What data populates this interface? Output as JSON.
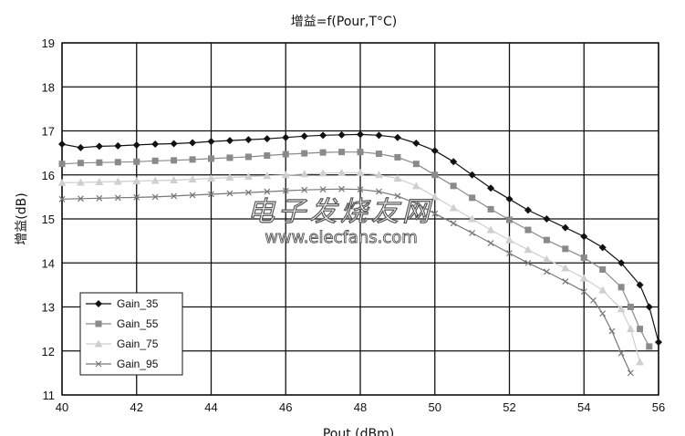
{
  "chart_data": {
    "type": "line",
    "title": "增益=f(Pour,T°C)",
    "xlabel": "Pout (dBm)",
    "ylabel": "增益(dB)",
    "xlim": [
      40,
      56
    ],
    "ylim": [
      11,
      19
    ],
    "x_ticks": [
      "40",
      "42",
      "44",
      "46",
      "48",
      "50",
      "52",
      "54",
      "56"
    ],
    "y_ticks": [
      "11",
      "12",
      "13",
      "14",
      "15",
      "16",
      "17",
      "18",
      "19"
    ],
    "grid": true,
    "legend_position": "bottom-left",
    "series": [
      {
        "name": "Gain_35",
        "marker": "diamond",
        "color": "#111111",
        "points": [
          [
            40.0,
            16.7
          ],
          [
            40.5,
            16.62
          ],
          [
            41.0,
            16.65
          ],
          [
            41.5,
            16.66
          ],
          [
            42.0,
            16.68
          ],
          [
            42.5,
            16.7
          ],
          [
            43.0,
            16.71
          ],
          [
            43.5,
            16.73
          ],
          [
            44.0,
            16.76
          ],
          [
            44.5,
            16.78
          ],
          [
            45.0,
            16.8
          ],
          [
            45.5,
            16.82
          ],
          [
            46.0,
            16.85
          ],
          [
            46.5,
            16.88
          ],
          [
            47.0,
            16.9
          ],
          [
            47.5,
            16.91
          ],
          [
            48.0,
            16.92
          ],
          [
            48.5,
            16.9
          ],
          [
            49.0,
            16.85
          ],
          [
            49.5,
            16.72
          ],
          [
            50.0,
            16.55
          ],
          [
            50.5,
            16.3
          ],
          [
            51.0,
            16.0
          ],
          [
            51.5,
            15.7
          ],
          [
            52.0,
            15.45
          ],
          [
            52.5,
            15.2
          ],
          [
            53.0,
            15.0
          ],
          [
            53.5,
            14.8
          ],
          [
            54.0,
            14.6
          ],
          [
            54.5,
            14.35
          ],
          [
            55.0,
            14.0
          ],
          [
            55.5,
            13.5
          ],
          [
            55.75,
            13.0
          ],
          [
            56.0,
            12.2
          ]
        ]
      },
      {
        "name": "Gain_55",
        "marker": "square",
        "color": "#8a8a8a",
        "points": [
          [
            40.0,
            16.25
          ],
          [
            40.5,
            16.27
          ],
          [
            41.0,
            16.28
          ],
          [
            41.5,
            16.29
          ],
          [
            42.0,
            16.3
          ],
          [
            42.5,
            16.32
          ],
          [
            43.0,
            16.33
          ],
          [
            43.5,
            16.35
          ],
          [
            44.0,
            16.37
          ],
          [
            44.5,
            16.39
          ],
          [
            45.0,
            16.41
          ],
          [
            45.5,
            16.44
          ],
          [
            46.0,
            16.47
          ],
          [
            46.5,
            16.49
          ],
          [
            47.0,
            16.51
          ],
          [
            47.5,
            16.52
          ],
          [
            48.0,
            16.52
          ],
          [
            48.5,
            16.48
          ],
          [
            49.0,
            16.4
          ],
          [
            49.5,
            16.25
          ],
          [
            50.0,
            16.0
          ],
          [
            50.5,
            15.75
          ],
          [
            51.0,
            15.48
          ],
          [
            51.5,
            15.22
          ],
          [
            52.0,
            14.98
          ],
          [
            52.5,
            14.75
          ],
          [
            53.0,
            14.52
          ],
          [
            53.5,
            14.32
          ],
          [
            54.0,
            14.12
          ],
          [
            54.5,
            13.85
          ],
          [
            55.0,
            13.45
          ],
          [
            55.25,
            13.0
          ],
          [
            55.5,
            12.5
          ],
          [
            55.75,
            12.1
          ]
        ]
      },
      {
        "name": "Gain_75",
        "marker": "triangle",
        "color": "#cfcfcf",
        "points": [
          [
            40.0,
            15.82
          ],
          [
            40.5,
            15.83
          ],
          [
            41.0,
            15.84
          ],
          [
            41.5,
            15.85
          ],
          [
            42.0,
            15.86
          ],
          [
            42.5,
            15.87
          ],
          [
            43.0,
            15.88
          ],
          [
            43.5,
            15.9
          ],
          [
            44.0,
            15.92
          ],
          [
            44.5,
            15.94
          ],
          [
            45.0,
            15.96
          ],
          [
            45.5,
            15.98
          ],
          [
            46.0,
            16.0
          ],
          [
            46.5,
            16.02
          ],
          [
            47.0,
            16.04
          ],
          [
            47.5,
            16.05
          ],
          [
            48.0,
            16.05
          ],
          [
            48.5,
            16.0
          ],
          [
            49.0,
            15.92
          ],
          [
            49.5,
            15.75
          ],
          [
            50.0,
            15.5
          ],
          [
            50.5,
            15.25
          ],
          [
            51.0,
            15.0
          ],
          [
            51.5,
            14.75
          ],
          [
            52.0,
            14.52
          ],
          [
            52.5,
            14.3
          ],
          [
            53.0,
            14.08
          ],
          [
            53.5,
            13.88
          ],
          [
            54.0,
            13.65
          ],
          [
            54.5,
            13.38
          ],
          [
            55.0,
            12.95
          ],
          [
            55.25,
            12.5
          ],
          [
            55.5,
            11.75
          ]
        ]
      },
      {
        "name": "Gain_95",
        "marker": "x",
        "color": "#777777",
        "points": [
          [
            40.0,
            15.45
          ],
          [
            40.5,
            15.46
          ],
          [
            41.0,
            15.47
          ],
          [
            41.5,
            15.48
          ],
          [
            42.0,
            15.49
          ],
          [
            42.5,
            15.5
          ],
          [
            43.0,
            15.52
          ],
          [
            43.5,
            15.54
          ],
          [
            44.0,
            15.56
          ],
          [
            44.5,
            15.58
          ],
          [
            45.0,
            15.6
          ],
          [
            45.5,
            15.62
          ],
          [
            46.0,
            15.64
          ],
          [
            46.5,
            15.66
          ],
          [
            47.0,
            15.67
          ],
          [
            47.5,
            15.68
          ],
          [
            48.0,
            15.67
          ],
          [
            48.5,
            15.62
          ],
          [
            49.0,
            15.52
          ],
          [
            49.5,
            15.35
          ],
          [
            50.0,
            15.12
          ],
          [
            50.5,
            14.9
          ],
          [
            51.0,
            14.68
          ],
          [
            51.5,
            14.45
          ],
          [
            52.0,
            14.22
          ],
          [
            52.5,
            14.0
          ],
          [
            53.0,
            13.8
          ],
          [
            53.5,
            13.58
          ],
          [
            54.0,
            13.35
          ],
          [
            54.25,
            13.15
          ],
          [
            54.5,
            12.85
          ],
          [
            54.75,
            12.45
          ],
          [
            55.0,
            11.95
          ],
          [
            55.25,
            11.5
          ]
        ]
      }
    ]
  },
  "watermark": {
    "chinese": "电子发烧友网",
    "url": "www.elecfans.com"
  }
}
